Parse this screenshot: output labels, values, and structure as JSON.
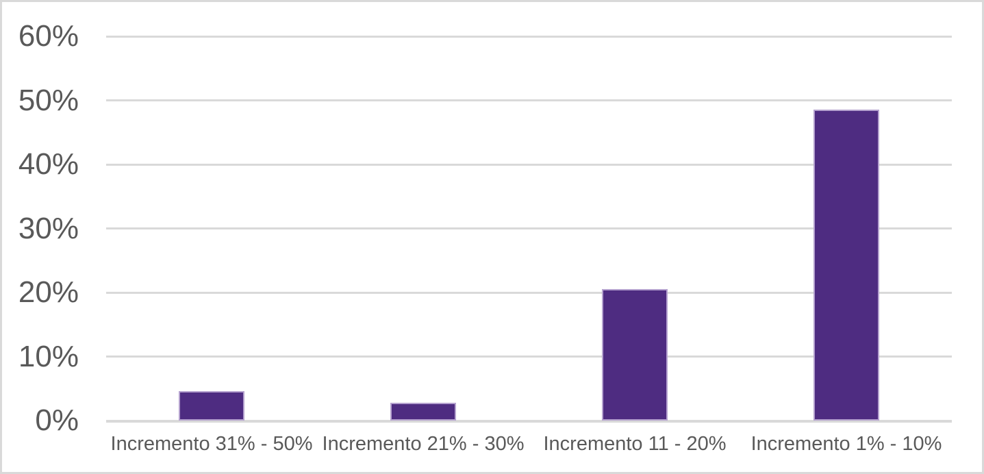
{
  "chart_data": {
    "type": "bar",
    "title": "",
    "xlabel": "",
    "ylabel": "",
    "categories": [
      "Incremento 31% - 50%",
      "Incremento 21% - 30%",
      "Incremento 11 - 20%",
      "Incremento 1% - 10%"
    ],
    "values": [
      4.6,
      2.8,
      20.5,
      48.6
    ],
    "ylim": [
      0,
      60
    ],
    "ytick_step": 10,
    "ytick_labels": [
      "0%",
      "10%",
      "20%",
      "30%",
      "40%",
      "50%",
      "60%"
    ],
    "grid": true,
    "legend": false,
    "colors": {
      "bar_fill": "#4E2C81",
      "bar_border": "#B5A2CF",
      "gridline": "#D9D9D9",
      "zero_line": "#D9D9D9",
      "axis_text": "#595959",
      "chart_border": "#D9D9D9",
      "background": "#FFFFFF"
    }
  }
}
